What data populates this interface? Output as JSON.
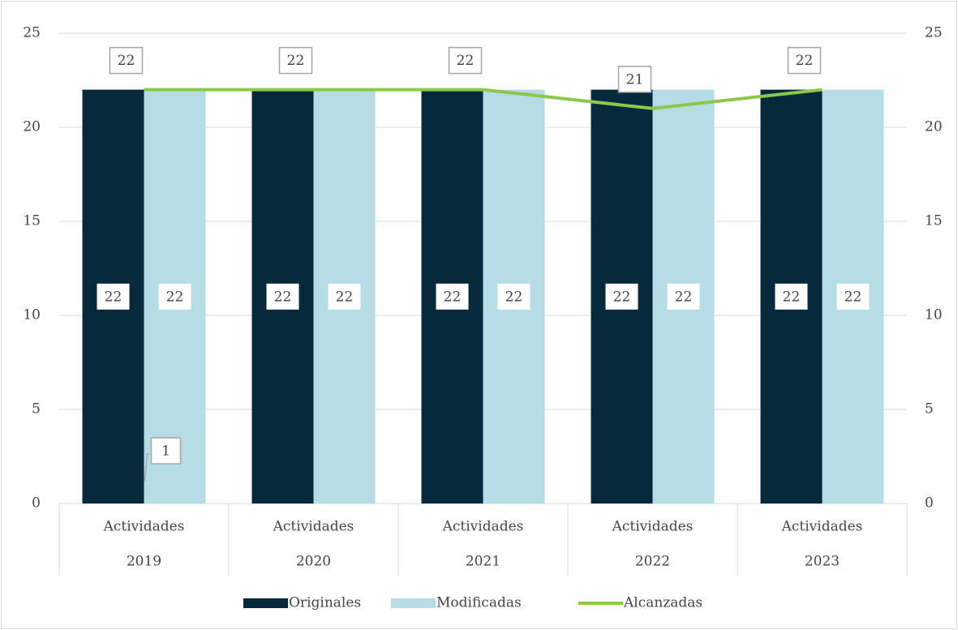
{
  "chart_data": {
    "type": "bar-line",
    "category_group": "Actividades",
    "categories": [
      "2019",
      "2020",
      "2021",
      "2022",
      "2023"
    ],
    "series": [
      {
        "name": "Originales",
        "type": "bar",
        "color": "#062a3c",
        "values": [
          22,
          22,
          22,
          22,
          22
        ]
      },
      {
        "name": "Modificadas",
        "type": "bar",
        "color": "#b6dde6",
        "values": [
          22,
          22,
          22,
          22,
          22
        ]
      },
      {
        "name": "Alcanzadas",
        "type": "line",
        "axis": "y2",
        "color": "#8cc84b",
        "values": [
          22,
          22,
          22,
          21,
          22
        ]
      }
    ],
    "annotations": [
      {
        "text": "1"
      }
    ],
    "ylim": [
      0,
      25
    ],
    "yticks": [
      0,
      5,
      10,
      15,
      20,
      25
    ],
    "y2lim": [
      0,
      25
    ],
    "y2ticks": [
      0,
      5,
      10,
      15,
      20,
      25
    ],
    "grid": true,
    "legend": "bottom"
  }
}
